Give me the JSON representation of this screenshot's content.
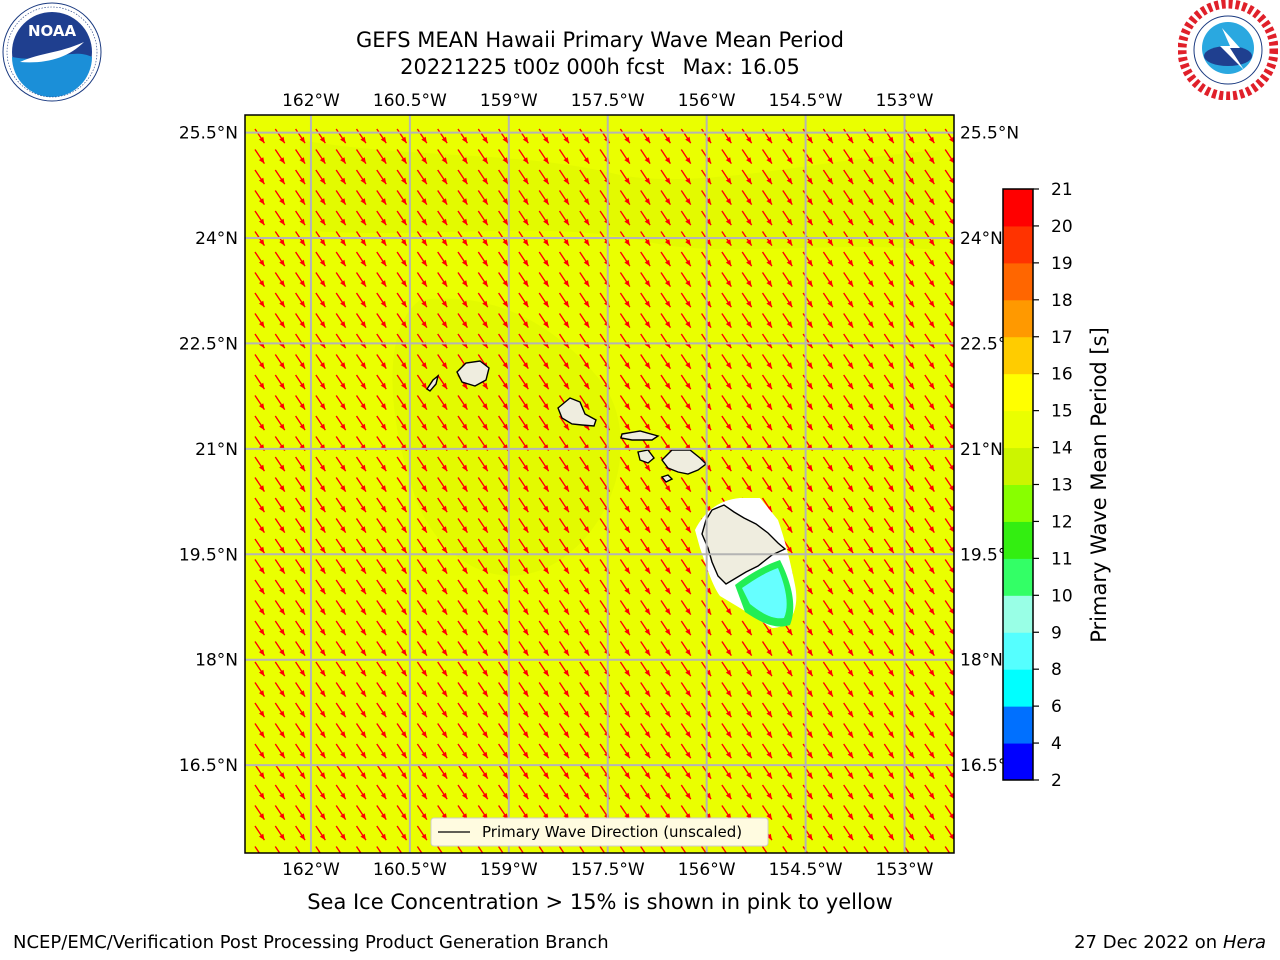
{
  "header": {
    "title_line1": "GEFS MEAN Hawaii Primary Wave Mean Period",
    "title_date": "20221225 t00z 000h fcst",
    "title_max": "Max: 16.05"
  },
  "logos": {
    "left": "noaa-logo",
    "right": "national-weather-service-logo"
  },
  "map": {
    "lon_ticks": [
      "162°W",
      "160.5°W",
      "159°W",
      "157.5°W",
      "156°W",
      "154.5°W",
      "153°W"
    ],
    "lat_ticks": [
      "25.5°N",
      "24°N",
      "22.5°N",
      "21°N",
      "19.5°N",
      "18°N",
      "16.5°N"
    ],
    "lon_values": [
      -162,
      -160.5,
      -159,
      -157.5,
      -156,
      -154.5,
      -153
    ],
    "lat_values": [
      25.5,
      24,
      22.5,
      21,
      19.5,
      18,
      16.5
    ],
    "extent": {
      "lon": [
        -163,
        -152.25
      ],
      "lat": [
        15.25,
        25.75
      ]
    },
    "field_color_dominant": "#eaff00",
    "land_color": "#efeddf",
    "arrow_color": "#ff0000",
    "grid_color": "#b4b4b4",
    "legend": "Primary Wave Direction (unscaled)",
    "islands": [
      "Kauai",
      "Niihau",
      "Oahu",
      "Molokai",
      "Lanai",
      "Maui",
      "Kahoolawe",
      "Hawaii"
    ]
  },
  "colorbar": {
    "label": "Primary Wave Mean Period [s]",
    "ticks": [
      "2",
      "4",
      "6",
      "8",
      "9",
      "10",
      "11",
      "12",
      "13",
      "14",
      "15",
      "16",
      "17",
      "18",
      "19",
      "20",
      "21"
    ],
    "colors": [
      "#0000ff",
      "#0070ff",
      "#00ffff",
      "#55ffff",
      "#99ffe6",
      "#33ff66",
      "#33ee11",
      "#88ff00",
      "#ccf500",
      "#eaff00",
      "#ffff00",
      "#ffcc00",
      "#ff9900",
      "#ff6600",
      "#ff3300",
      "#ff0000"
    ]
  },
  "footer": {
    "note": "Sea Ice Concentration > 15% is shown in pink to yellow",
    "left": "NCEP/EMC/Verification Post Processing Product Generation Branch",
    "date": "27 Dec 2022 on",
    "host": "Hera"
  }
}
